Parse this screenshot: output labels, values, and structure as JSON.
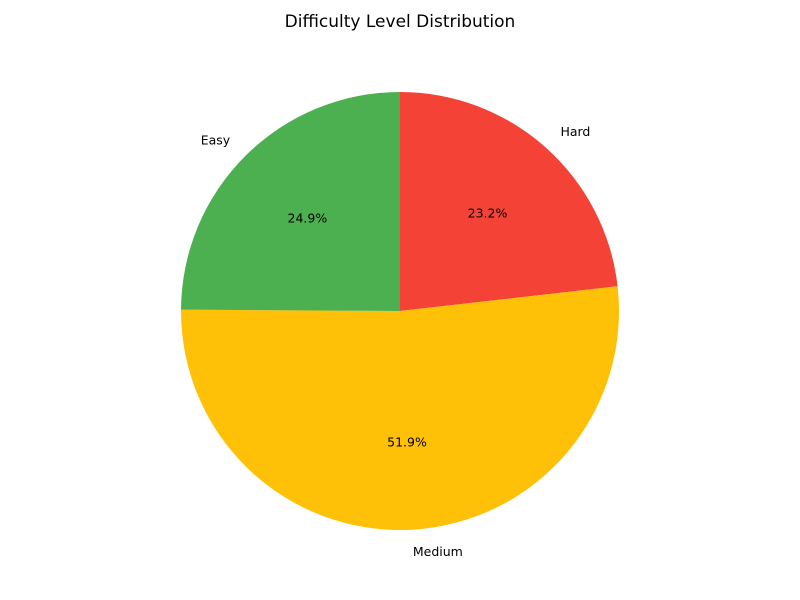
{
  "chart_data": {
    "type": "pie",
    "title": "Difficulty Level Distribution",
    "start_angle": 90,
    "direction": "clockwise",
    "slices": [
      {
        "label": "Hard",
        "value": 23.2,
        "pct_label": "23.2%",
        "color": "#F44336"
      },
      {
        "label": "Medium",
        "value": 51.9,
        "pct_label": "51.9%",
        "color": "#FFC107"
      },
      {
        "label": "Easy",
        "value": 24.9,
        "pct_label": "24.9%",
        "color": "#4CAF50"
      }
    ]
  }
}
